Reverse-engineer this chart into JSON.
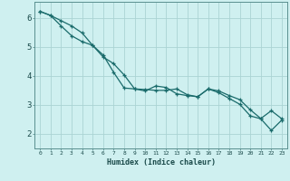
{
  "xlabel": "Humidex (Indice chaleur)",
  "bg_color": "#cff0f0",
  "grid_color": "#aad4d4",
  "line_color": "#1a6b6b",
  "spine_color": "#5a9090",
  "xlim": [
    -0.5,
    23.5
  ],
  "ylim": [
    1.5,
    6.55
  ],
  "xticks": [
    0,
    1,
    2,
    3,
    4,
    5,
    6,
    7,
    8,
    9,
    10,
    11,
    12,
    13,
    14,
    15,
    16,
    17,
    18,
    19,
    20,
    21,
    22,
    23
  ],
  "yticks": [
    2,
    3,
    4,
    5,
    6
  ],
  "line1_x": [
    0,
    1,
    2,
    3,
    4,
    5,
    6,
    7,
    8,
    9,
    10,
    11,
    12,
    13,
    14,
    15,
    16,
    17,
    18,
    19,
    20,
    21,
    22,
    23
  ],
  "line1_y": [
    6.22,
    6.08,
    5.9,
    5.72,
    5.48,
    5.05,
    4.65,
    4.42,
    4.03,
    3.55,
    3.53,
    3.5,
    3.5,
    3.55,
    3.35,
    3.28,
    3.55,
    3.48,
    3.32,
    3.18,
    2.83,
    2.53,
    2.8,
    2.52
  ],
  "line2_x": [
    0,
    1,
    2,
    3,
    4,
    5,
    6,
    7,
    8,
    9,
    10,
    11,
    12,
    13,
    14,
    15,
    16,
    17,
    18,
    19,
    20,
    21,
    22,
    23
  ],
  "line2_y": [
    6.22,
    6.08,
    5.72,
    5.38,
    5.18,
    5.05,
    4.72,
    4.12,
    3.58,
    3.55,
    3.48,
    3.65,
    3.6,
    3.38,
    3.32,
    3.28,
    3.55,
    3.42,
    3.22,
    3.02,
    2.62,
    2.52,
    2.12,
    2.48
  ]
}
